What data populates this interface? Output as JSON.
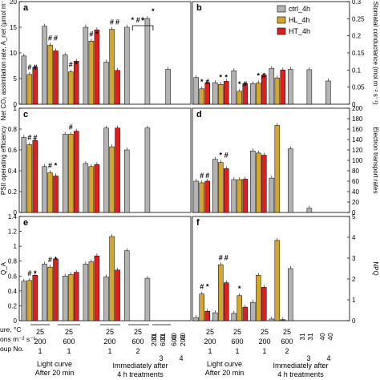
{
  "legend": {
    "items": [
      {
        "label": "ctrl_4h",
        "color": "#b3b3b3"
      },
      {
        "label": "HL_4h",
        "color": "#d4a72c"
      },
      {
        "label": "HT_4h",
        "color": "#dd1f1f"
      }
    ]
  },
  "bottom_axis": {
    "row_labels": [
      "ure, °C",
      "ons m⁻² s⁻¹",
      "oup No."
    ],
    "groups_left": {
      "temps": [
        "25",
        "25"
      ],
      "lights": [
        "200",
        "600"
      ],
      "group_nos": [
        "1",
        "1"
      ],
      "caption_lines": [
        "Light curve",
        "After 20 min"
      ]
    },
    "groups_right": {
      "temps": [
        "25",
        "25",
        "31",
        "31",
        "40",
        "40"
      ],
      "lights": [
        "200",
        "600",
        "200",
        "600",
        "600",
        "200"
      ],
      "group_nos": [
        "1",
        "2",
        "3",
        "4"
      ],
      "caption_lines": [
        "Immediately after",
        "4 h treatments"
      ]
    }
  },
  "chart_data": [
    {
      "panel": "a",
      "type": "bar",
      "ylabel": "Net CO₂ assimilation rate, A_net (μmol m⁻² s⁻¹)",
      "ylim": [
        0,
        20
      ],
      "yticks": [
        0,
        5,
        10,
        15,
        20
      ],
      "categories": [
        "25/200 (1)",
        "25/600 (1)",
        "25/200 (1)",
        "25/600 (2)",
        "31/200 (3)",
        "31/600 (3)",
        "40/600 (4)",
        "40/200 (4)"
      ],
      "series": [
        {
          "name": "ctrl_4h",
          "values": [
            9.4,
            15.2,
            9.6,
            15.0,
            8.2,
            15.0,
            16.7,
            6.8
          ]
        },
        {
          "name": "HL_4h",
          "values": [
            5.8,
            11.5,
            6.3,
            12.3,
            14.6,
            null,
            null,
            null
          ]
        },
        {
          "name": "HT_4h",
          "values": [
            7.2,
            10.4,
            8.4,
            14.5,
            6.6,
            null,
            null,
            null
          ]
        }
      ],
      "markers": [
        "#",
        "#",
        "#",
        "#",
        "#",
        "*",
        "#",
        "*",
        "#",
        "#",
        "*",
        "#",
        "*"
      ],
      "bracket_marker": "*"
    },
    {
      "panel": "b",
      "type": "bar",
      "ylabel": "Stomatal conductance (mol m⁻² s⁻¹)",
      "ylim": [
        0,
        0.3
      ],
      "yticks": [
        0,
        0.05,
        0.1,
        0.15,
        0.2,
        0.25,
        0.3
      ],
      "categories": [
        "25/200 (1)",
        "25/600 (1)",
        "25/200 (1)",
        "25/600 (2)",
        "31/200 (3)",
        "31/600 (3)",
        "40/600 (4)",
        "40/200 (4)"
      ],
      "series": [
        {
          "name": "ctrl_4h",
          "values": [
            0.078,
            0.063,
            0.098,
            0.06,
            0.105,
            0.102,
            0.101,
            0.068
          ]
        },
        {
          "name": "HL_4h",
          "values": [
            0.045,
            0.058,
            0.038,
            0.062,
            0.077,
            null,
            null,
            null
          ]
        },
        {
          "name": "HT_4h",
          "values": [
            0.063,
            0.067,
            0.06,
            0.085,
            0.1,
            null,
            null,
            null
          ]
        }
      ],
      "markers": [
        "*",
        "#",
        "*",
        "*",
        "*",
        "#",
        "*",
        "#"
      ]
    },
    {
      "panel": "c",
      "type": "bar",
      "ylabel": "PSII operating efficiency",
      "ylim": [
        0,
        1
      ],
      "yticks": [
        0,
        0.2,
        0.4,
        0.6,
        0.8,
        1.0
      ],
      "categories": [
        "25/200 (1)",
        "25/600 (1)",
        "25/200 (1)",
        "25/600 (2)",
        "31/200 (3)",
        "31/600 (3)",
        "40/600 (4)",
        "40/200 (4)"
      ],
      "series": [
        {
          "name": "ctrl_4h",
          "values": [
            0.72,
            0.44,
            0.75,
            0.47,
            0.81,
            0.6,
            0.81,
            null
          ]
        },
        {
          "name": "HL_4h",
          "values": [
            0.65,
            0.38,
            0.75,
            0.44,
            0.63,
            null,
            null,
            null
          ]
        },
        {
          "name": "HT_4h",
          "values": [
            0.69,
            0.35,
            0.78,
            0.46,
            0.81,
            null,
            null,
            null
          ]
        }
      ],
      "markers": [
        "#",
        "#",
        "#",
        "*",
        "#"
      ]
    },
    {
      "panel": "d",
      "type": "bar",
      "ylabel": "Electron transport rates",
      "ylim": [
        0,
        200
      ],
      "yticks": [
        0,
        20,
        40,
        60,
        80,
        100,
        120,
        140,
        160,
        180,
        200
      ],
      "categories": [
        "25/200 (1)",
        "25/600 (1)",
        "25/200 (1)",
        "25/600 (2)",
        "31/200 (3)",
        "31/600 (3)",
        "40/600 (4)",
        "40/200 (4)"
      ],
      "series": [
        {
          "name": "ctrl_4h",
          "values": [
            60,
            102,
            63,
            118,
            66,
            122,
            8,
            null
          ]
        },
        {
          "name": "HL_4h",
          "values": [
            57,
            96,
            63,
            114,
            167,
            null,
            null,
            null
          ]
        },
        {
          "name": "HT_4h",
          "values": [
            60,
            84,
            64,
            110,
            null,
            null,
            null,
            null
          ]
        }
      ],
      "markers": [
        "#",
        "#",
        "*",
        "#"
      ]
    },
    {
      "panel": "e",
      "type": "bar",
      "ylabel": "Q_A",
      "ylim": [
        0,
        1.4
      ],
      "yticks": [
        0,
        0.2,
        0.4,
        0.6,
        0.8,
        1.0,
        1.2,
        1.4
      ],
      "categories": [
        "25/200 (1)",
        "25/600 (1)",
        "25/200 (1)",
        "25/600 (2)",
        "31/200 (3)",
        "31/600 (3)",
        "40/600 (4)",
        "40/200 (4)"
      ],
      "series": [
        {
          "name": "ctrl_4h",
          "values": [
            0.53,
            0.76,
            0.6,
            0.76,
            0.59,
            0.94,
            0.57,
            null
          ]
        },
        {
          "name": "HL_4h",
          "values": [
            0.54,
            0.72,
            0.62,
            0.79,
            1.13,
            null,
            null,
            null
          ]
        },
        {
          "name": "HT_4h",
          "values": [
            0.61,
            0.83,
            0.65,
            0.87,
            0.68,
            null,
            null,
            null
          ]
        }
      ],
      "markers": [
        "#",
        "*",
        "#",
        "*"
      ]
    },
    {
      "panel": "f",
      "type": "bar",
      "ylabel": "NPQ",
      "ylim": [
        0,
        5
      ],
      "yticks": [
        0,
        1,
        2,
        3,
        4,
        5
      ],
      "categories": [
        "25/200 (1)",
        "25/600 (1)",
        "25/200 (1)",
        "25/600 (2)",
        "31/200 (3)",
        "31/600 (3)",
        "40/600 (4)",
        "40/200 (4)"
      ],
      "series": [
        {
          "name": "ctrl_4h",
          "values": [
            0.15,
            0.38,
            0.35,
            0.88,
            0.08,
            2.5,
            null,
            null
          ]
        },
        {
          "name": "HL_4h",
          "values": [
            1.28,
            2.68,
            1.2,
            2.18,
            3.85,
            null,
            null,
            null
          ]
        },
        {
          "name": "HT_4h",
          "values": [
            0.45,
            1.82,
            0.65,
            1.6,
            0.05,
            null,
            null,
            null
          ]
        }
      ],
      "markers": [
        "#",
        "*",
        "#",
        "#",
        "*"
      ]
    }
  ]
}
